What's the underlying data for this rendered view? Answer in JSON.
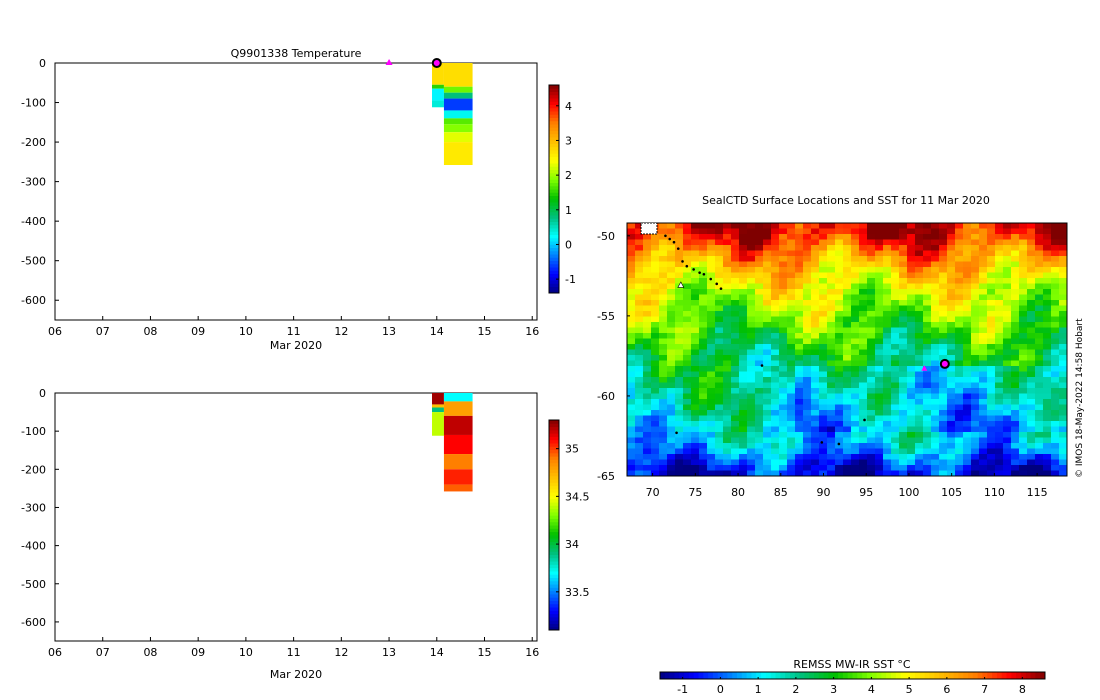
{
  "colors": {
    "jet": [
      "#00007f",
      "#0000ff",
      "#007fff",
      "#00ffff",
      "#00c080",
      "#00c000",
      "#7fff00",
      "#ffff00",
      "#ffbf00",
      "#ff7f00",
      "#ff0000",
      "#7f0000"
    ],
    "marker_magenta": "#ff00ff",
    "marker_edge": "#000000",
    "axis": "#000000"
  },
  "chart_data": [
    {
      "type": "heatmap",
      "title": "Q9901338  Temperature",
      "xlabel": "Mar 2020",
      "ylabel": "",
      "x_ticks": [
        "06",
        "07",
        "08",
        "09",
        "10",
        "11",
        "12",
        "13",
        "14",
        "15",
        "16"
      ],
      "xlim": [
        6,
        16.1
      ],
      "y_ticks": [
        0,
        -100,
        -200,
        -300,
        -400,
        -500,
        -600
      ],
      "ylim": [
        -650,
        0
      ],
      "colorbar": {
        "ticks": [
          4,
          3,
          2,
          1,
          0,
          -1
        ],
        "range": [
          -1.4,
          4.6
        ]
      },
      "markers": [
        {
          "x": 13.0,
          "y": 0,
          "kind": "triangle",
          "color": "#ff00ff"
        },
        {
          "x": 14.0,
          "y": 0,
          "kind": "circle",
          "color": "#ff00ff"
        }
      ],
      "profiles": [
        {
          "x0": 13.9,
          "x1": 14.15,
          "layers": [
            {
              "d0": 0,
              "d1": 55,
              "value": 2.7
            },
            {
              "d0": 55,
              "d1": 65,
              "value": 1.5
            },
            {
              "d0": 65,
              "d1": 95,
              "value": 0.2
            },
            {
              "d0": 95,
              "d1": 112,
              "value": 0.4
            }
          ]
        },
        {
          "x0": 14.15,
          "x1": 14.75,
          "layers": [
            {
              "d0": 0,
              "d1": 60,
              "value": 2.7
            },
            {
              "d0": 60,
              "d1": 75,
              "value": 1.8
            },
            {
              "d0": 75,
              "d1": 90,
              "value": 0.8
            },
            {
              "d0": 90,
              "d1": 120,
              "value": -0.6
            },
            {
              "d0": 120,
              "d1": 140,
              "value": 0.3
            },
            {
              "d0": 140,
              "d1": 155,
              "value": 1.7
            },
            {
              "d0": 155,
              "d1": 175,
              "value": 1.9
            },
            {
              "d0": 175,
              "d1": 200,
              "value": 2.3
            },
            {
              "d0": 200,
              "d1": 258,
              "value": 2.6
            }
          ]
        }
      ]
    },
    {
      "type": "heatmap",
      "title": "",
      "xlabel": "Mar 2020",
      "ylabel": "",
      "x_ticks": [
        "06",
        "07",
        "08",
        "09",
        "10",
        "11",
        "12",
        "13",
        "14",
        "15",
        "16"
      ],
      "xlim": [
        6,
        16.1
      ],
      "y_ticks": [
        0,
        -100,
        -200,
        -300,
        -400,
        -500,
        -600
      ],
      "ylim": [
        -650,
        0
      ],
      "colorbar": {
        "ticks": [
          35,
          34.5,
          34,
          33.5
        ],
        "range": [
          33.1,
          35.3
        ]
      },
      "markers": [],
      "profiles": [
        {
          "x0": 13.9,
          "x1": 14.15,
          "layers": [
            {
              "d0": 0,
              "d1": 30,
              "value": 35.25
            },
            {
              "d0": 30,
              "d1": 38,
              "value": 34.7
            },
            {
              "d0": 38,
              "d1": 50,
              "value": 33.9
            },
            {
              "d0": 50,
              "d1": 112,
              "value": 34.4
            }
          ]
        },
        {
          "x0": 14.15,
          "x1": 14.75,
          "layers": [
            {
              "d0": 0,
              "d1": 22,
              "value": 33.7
            },
            {
              "d0": 22,
              "d1": 60,
              "value": 34.8
            },
            {
              "d0": 60,
              "d1": 110,
              "value": 35.2
            },
            {
              "d0": 110,
              "d1": 160,
              "value": 35.1
            },
            {
              "d0": 160,
              "d1": 200,
              "value": 34.9
            },
            {
              "d0": 200,
              "d1": 240,
              "value": 35.05
            },
            {
              "d0": 240,
              "d1": 258,
              "value": 34.95
            }
          ]
        }
      ]
    },
    {
      "type": "heatmap",
      "title": "SealCTD Surface Locations and SST for 11 Mar 2020",
      "xlabel": "",
      "ylabel": "",
      "x_ticks": [
        70,
        75,
        80,
        85,
        90,
        95,
        100,
        105,
        110,
        115
      ],
      "xlim": [
        67,
        118.5
      ],
      "y_ticks": [
        -50,
        -55,
        -60,
        -65
      ],
      "ylim": [
        -65,
        -49.2
      ],
      "colorbar_label": "REMSS MW-IR SST °C",
      "colorbar": {
        "ticks": [
          -1,
          0,
          1,
          2,
          3,
          4,
          5,
          6,
          7,
          8
        ],
        "range": [
          -1.6,
          8.6
        ]
      },
      "sst_by_latitude": [
        {
          "lat": -49.5,
          "value": 8.0
        },
        {
          "lat": -51,
          "value": 6.5
        },
        {
          "lat": -53,
          "value": 4.8
        },
        {
          "lat": -55,
          "value": 3.8
        },
        {
          "lat": -57,
          "value": 2.6
        },
        {
          "lat": -59,
          "value": 2.2
        },
        {
          "lat": -61,
          "value": 1.6
        },
        {
          "lat": -63,
          "value": 0.8
        },
        {
          "lat": -64.5,
          "value": -0.8
        }
      ],
      "track": [
        [
          71.5,
          -50.0
        ],
        [
          72,
          -50.2
        ],
        [
          72.5,
          -50.4
        ],
        [
          73,
          -50.8
        ],
        [
          73.5,
          -51.6
        ],
        [
          74,
          -51.9
        ],
        [
          74.8,
          -52.1
        ],
        [
          75.5,
          -52.3
        ],
        [
          76,
          -52.4
        ],
        [
          76.8,
          -52.7
        ],
        [
          77.5,
          -53.0
        ],
        [
          78,
          -53.3
        ],
        [
          82.8,
          -58.1
        ],
        [
          89.8,
          -62.9
        ],
        [
          91.8,
          -63.0
        ],
        [
          94.8,
          -61.5
        ],
        [
          72.8,
          -62.3
        ]
      ],
      "markers": [
        {
          "x": 73.3,
          "y": -53.1,
          "kind": "triangle",
          "color": "#ffffff"
        },
        {
          "x": 101.8,
          "y": -58.3,
          "kind": "triangle",
          "color": "#ff00ff"
        },
        {
          "x": 104.2,
          "y": -58.0,
          "kind": "circle",
          "color": "#ff00ff"
        }
      ],
      "credit": "© IMOS 18-May-2022 14:58 Hobart"
    }
  ]
}
